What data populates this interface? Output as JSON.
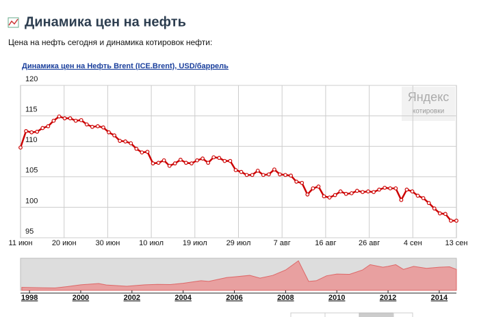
{
  "header": {
    "title": "Динамика цен на нефть",
    "subtitle": "Цена на нефть сегодня и динамика котировок нефти:"
  },
  "watermark": {
    "brand": "Яндекс",
    "product": "котировки"
  },
  "chart_data": [
    {
      "type": "line",
      "title": "Динамика цен на Нефть Brent (ICE.Brent), USD/баррель",
      "color": "#cc0000",
      "grid": true,
      "ylim": [
        95,
        120
      ],
      "yticks": [
        95,
        100,
        105,
        110,
        115,
        120
      ],
      "xtick_labels": [
        "11 июн",
        "20 июн",
        "30 июн",
        "10 июл",
        "19 июл",
        "29 июл",
        "7 авг",
        "16 авг",
        "26 авг",
        "4 сен",
        "13 сен"
      ],
      "values": [
        109.8,
        112.5,
        112.3,
        112.4,
        113,
        113.3,
        114.2,
        114.9,
        114.6,
        114.6,
        114.2,
        114.3,
        113.6,
        113.2,
        113.3,
        113.1,
        112.3,
        111.8,
        110.9,
        110.8,
        110.5,
        109.6,
        109.0,
        109.1,
        107.2,
        107.3,
        107.7,
        106.8,
        107.2,
        107.8,
        107.3,
        107.2,
        107.7,
        108.0,
        107.3,
        108.2,
        108.1,
        107.6,
        107.6,
        106.1,
        105.8,
        105.3,
        105.3,
        106.0,
        105.3,
        105.4,
        106.2,
        105.4,
        105.3,
        105.2,
        104.2,
        104.0,
        102.1,
        103.1,
        103.4,
        101.8,
        101.6,
        102.0,
        102.6,
        102.2,
        102.3,
        102.7,
        102.5,
        102.6,
        102.5,
        102.9,
        103.2,
        103.1,
        103.1,
        101.2,
        102.9,
        102.6,
        101.9,
        101.5,
        100.7,
        99.8,
        99.0,
        98.9,
        97.8,
        97.8
      ]
    },
    {
      "type": "area",
      "color": "#e8a0a0",
      "xlim": [
        1997.65,
        2014.67
      ],
      "ylim": [
        0,
        150
      ],
      "xticks": [
        1998,
        2000,
        2002,
        2004,
        2006,
        2008,
        2010,
        2012,
        2014
      ],
      "x": [
        1997.7,
        1998.5,
        1999,
        1999.5,
        2000,
        2000.7,
        2001,
        2001.8,
        2002,
        2002.5,
        2003,
        2003.5,
        2004,
        2004.7,
        2005,
        2005.7,
        2006,
        2006.6,
        2007,
        2007.5,
        2008,
        2008.5,
        2008.9,
        2009.2,
        2009.6,
        2010,
        2010.5,
        2011,
        2011.3,
        2011.8,
        2012,
        2012.3,
        2012.6,
        2013,
        2013.5,
        2014,
        2014.4,
        2014.67
      ],
      "values": [
        14,
        12,
        11,
        18,
        26,
        32,
        25,
        19,
        21,
        26,
        28,
        27,
        33,
        45,
        42,
        60,
        63,
        70,
        57,
        70,
        95,
        138,
        42,
        45,
        68,
        76,
        75,
        95,
        120,
        108,
        112,
        120,
        98,
        112,
        103,
        108,
        110,
        98
      ]
    }
  ]
}
